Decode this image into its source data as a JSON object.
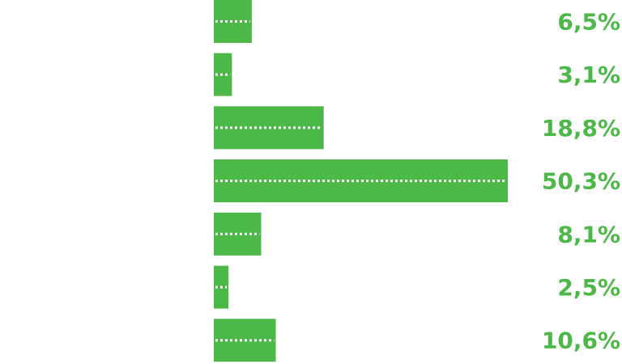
{
  "chart_data": {
    "type": "bar",
    "orientation": "horizontal",
    "values": [
      6.5,
      3.1,
      18.8,
      50.3,
      8.1,
      2.5,
      10.6
    ],
    "labels": [
      "6,5%",
      "3,1%",
      "18,8%",
      "50,3%",
      "8,1%",
      "2,5%",
      "10,6%"
    ],
    "unit": "%",
    "xlim": [
      0,
      50.3
    ],
    "grid": false,
    "bar_color": "#4cb848",
    "label_color": "#4cb848",
    "stripe_color": "#ffffff",
    "stripe_style": "dotted"
  }
}
